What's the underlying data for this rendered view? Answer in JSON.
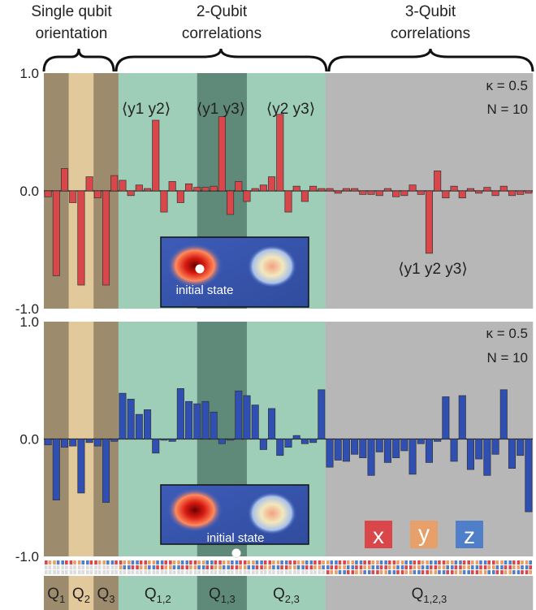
{
  "headers": {
    "single": [
      "Single qubit",
      "orientation"
    ],
    "two": [
      "2-Qubit",
      "correlations"
    ],
    "three": [
      "3-Qubit",
      "correlations"
    ]
  },
  "annotations": {
    "kappa": "κ = 0.5",
    "n": "N = 10",
    "initial_state": "initial state",
    "label_y1y2": "⟨y1 y2⟩",
    "label_y1y3": "⟨y1 y3⟩",
    "label_y2y3": "⟨y2 y3⟩",
    "label_y1y2y3": "⟨y1 y2 y3⟩"
  },
  "legend": [
    {
      "label": "x",
      "color": "#d9474a"
    },
    {
      "label": "y",
      "color": "#e8a06a"
    },
    {
      "label": "z",
      "color": "#4f7fc9"
    }
  ],
  "bottom_labels": [
    "Q1",
    "Q2",
    "Q3",
    "Q1,2",
    "Q1,3",
    "Q2,3",
    "Q1,2,3"
  ],
  "region_colors": {
    "single_dark": "#9d8b6e",
    "single_light": "#e2c99c",
    "pair": "#9ecdb8",
    "pair_mid": "#5f8a79",
    "triple": "#b7b7b7"
  },
  "chart_data": [
    {
      "type": "bar",
      "color": "#d9474a",
      "ylim": [
        -1.0,
        1.0
      ],
      "yticks": [
        "1.0",
        "0.0",
        "-1.0"
      ],
      "values": [
        -0.05,
        -0.72,
        0.19,
        -0.1,
        -0.8,
        0.12,
        -0.06,
        -0.8,
        0.13,
        0.09,
        -0.04,
        0.05,
        0.02,
        0.6,
        -0.18,
        0.08,
        -0.1,
        0.06,
        0.03,
        0.03,
        0.04,
        0.63,
        -0.2,
        0.08,
        -0.09,
        0.02,
        0.05,
        0.12,
        0.65,
        -0.18,
        0.04,
        -0.09,
        0.04,
        0.02,
        0.02,
        -0.02,
        0.02,
        0.02,
        -0.03,
        -0.03,
        -0.04,
        0.02,
        -0.05,
        -0.04,
        0.05,
        -0.03,
        -0.53,
        0.17,
        -0.06,
        0.04,
        -0.06,
        0.02,
        -0.02,
        0.03,
        -0.04,
        0.04,
        -0.04,
        -0.03,
        -0.02
      ]
    },
    {
      "type": "bar",
      "color": "#2f4fb3",
      "ylim": [
        -1.0,
        1.0
      ],
      "yticks": [
        "1.0",
        "0.0",
        "-1.0"
      ],
      "values": [
        -0.05,
        -0.52,
        -0.07,
        -0.06,
        -0.46,
        -0.03,
        -0.06,
        -0.54,
        -0.02,
        0.39,
        0.34,
        0.21,
        0.25,
        -0.12,
        -0.01,
        -0.02,
        0.43,
        0.32,
        0.3,
        0.32,
        0.23,
        -0.04,
        -0.01,
        0.41,
        0.37,
        0.29,
        -0.09,
        0.26,
        -0.14,
        -0.07,
        0.03,
        -0.04,
        -0.03,
        0.42,
        -0.24,
        -0.18,
        -0.19,
        -0.13,
        -0.16,
        -0.31,
        -0.11,
        -0.2,
        -0.16,
        -0.1,
        -0.3,
        -0.04,
        -0.2,
        -0.02,
        0.36,
        -0.19,
        0.37,
        -0.26,
        -0.17,
        -0.31,
        -0.13,
        0.42,
        -0.25,
        -0.14,
        -0.62
      ]
    }
  ]
}
